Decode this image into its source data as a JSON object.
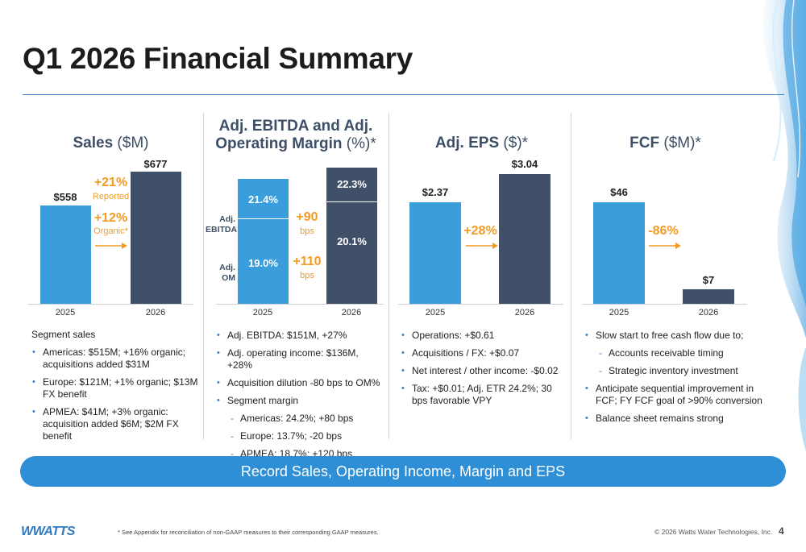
{
  "title": "Q1 2026 Financial Summary",
  "colors": {
    "blue": "#3a9edc",
    "dark": "#3f5068",
    "orange": "#f29b25",
    "banner": "#2e8fd6"
  },
  "panels": {
    "sales": {
      "title": "Sales",
      "unit": " ($M)",
      "bar_labels": [
        "$558",
        "$677"
      ],
      "change1": "+21%",
      "change1_label": "Reported",
      "change2": "+12%",
      "change2_label": "Organic*",
      "bullets_header": "Segment sales",
      "bullets": [
        "Americas: $515M; +16% organic; acquisitions added $31M",
        "Europe: $121M; +1% organic; $13M FX benefit",
        "APMEA: $41M; +3% organic: acquisition added $6M; $2M FX benefit"
      ]
    },
    "ebitda": {
      "title": "Adj. EBITDA and Adj. Operating Margin",
      "unit": " (%)*",
      "row_label_top": "Adj. EBITDA",
      "row_label_bottom": "Adj. OM",
      "labels_2025": [
        "21.4%",
        "19.0%"
      ],
      "labels_2026": [
        "22.3%",
        "20.1%"
      ],
      "change1": "+90",
      "change1_label": "bps",
      "change2": "+110",
      "change2_label": "bps",
      "bullets": [
        "Adj. EBITDA: $151M, +27%",
        "Adj. operating income: $136M, +28%",
        "Acquisition dilution -80 bps to OM%",
        "Segment margin"
      ],
      "sub_bullets": [
        "Americas: 24.2%; +80 bps",
        "Europe: 13.7%; -20 bps",
        "APMEA: 18.7%; +120 bps"
      ]
    },
    "eps": {
      "title": "Adj. EPS",
      "unit": " ($)*",
      "bar_labels": [
        "$2.37",
        "$3.04"
      ],
      "change": "+28%",
      "bullets": [
        "Operations: +$0.61",
        "Acquisitions / FX: +$0.07",
        "Net interest / other income: -$0.02",
        "Tax: +$0.01; Adj. ETR 24.2%; 30 bps favorable VPY"
      ]
    },
    "fcf": {
      "title": "FCF",
      "unit": " ($M)*",
      "bar_labels": [
        "$46",
        "$7"
      ],
      "change": "-86%",
      "bullets1": [
        "Slow start to free cash flow due to;"
      ],
      "sub_bullets": [
        "Accounts receivable timing",
        "Strategic inventory investment"
      ],
      "bullets2": [
        "Anticipate sequential improvement in FCF; FY FCF goal of >90% conversion",
        "Balance sheet remains strong"
      ]
    }
  },
  "chart_data": [
    {
      "type": "bar",
      "title": "Sales ($M)",
      "categories": [
        "2025",
        "2026"
      ],
      "values": [
        558,
        677
      ],
      "ylim": [
        0,
        700
      ]
    },
    {
      "type": "bar",
      "title": "Adj. EBITDA and Adj. Operating Margin (%)*",
      "categories": [
        "2025",
        "2026"
      ],
      "series": [
        {
          "name": "Adj. EBITDA",
          "values": [
            21.4,
            22.3
          ]
        },
        {
          "name": "Adj. OM",
          "values": [
            19.0,
            20.1
          ]
        }
      ]
    },
    {
      "type": "bar",
      "title": "Adj. EPS ($)*",
      "categories": [
        "2025",
        "2026"
      ],
      "values": [
        2.37,
        3.04
      ],
      "ylim": [
        0,
        3.2
      ]
    },
    {
      "type": "bar",
      "title": "FCF ($M)*",
      "categories": [
        "2025",
        "2026"
      ],
      "values": [
        46,
        7
      ],
      "ylim": [
        0,
        50
      ]
    }
  ],
  "banner": "Record Sales, Operating Income, Margin and EPS",
  "footer": {
    "logo": "WWATTS",
    "footnote": "* See Appendix for reconciliation of non-GAAP measures to their corresponding GAAP measures.",
    "copyright": "© 2026 Watts Water Technologies, Inc.",
    "page": "4"
  }
}
